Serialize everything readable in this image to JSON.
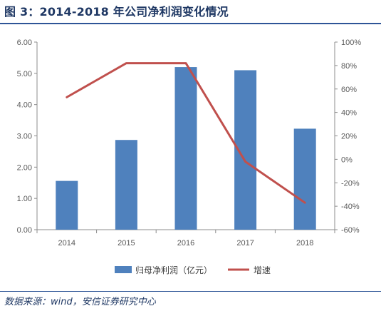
{
  "title": "图 3：2014-2018 年公司净利润变化情况",
  "source": "数据来源：wind，安信证券研究中心",
  "colors": {
    "bar": "#4f81bd",
    "line": "#c0504d",
    "title": "#1f3864",
    "rule": "#2e5597"
  },
  "chart_data": {
    "type": "bar",
    "categories": [
      "2014",
      "2015",
      "2016",
      "2017",
      "2018"
    ],
    "series": [
      {
        "name": "归母净利润（亿元）",
        "type": "bar",
        "axis": "left",
        "values": [
          1.56,
          2.87,
          5.2,
          5.1,
          3.23
        ]
      },
      {
        "name": "增速",
        "type": "line",
        "axis": "right",
        "values": [
          53,
          82,
          82,
          -2,
          -37
        ]
      }
    ],
    "ylim_left": [
      0,
      6
    ],
    "yticks_left": [
      "0.00",
      "1.00",
      "2.00",
      "3.00",
      "4.00",
      "5.00",
      "6.00"
    ],
    "ylim_right": [
      -60,
      100
    ],
    "yticks_right": [
      "-60%",
      "-40%",
      "-20%",
      "0%",
      "20%",
      "40%",
      "60%",
      "80%",
      "100%"
    ],
    "legend_position": "bottom",
    "grid": false
  }
}
